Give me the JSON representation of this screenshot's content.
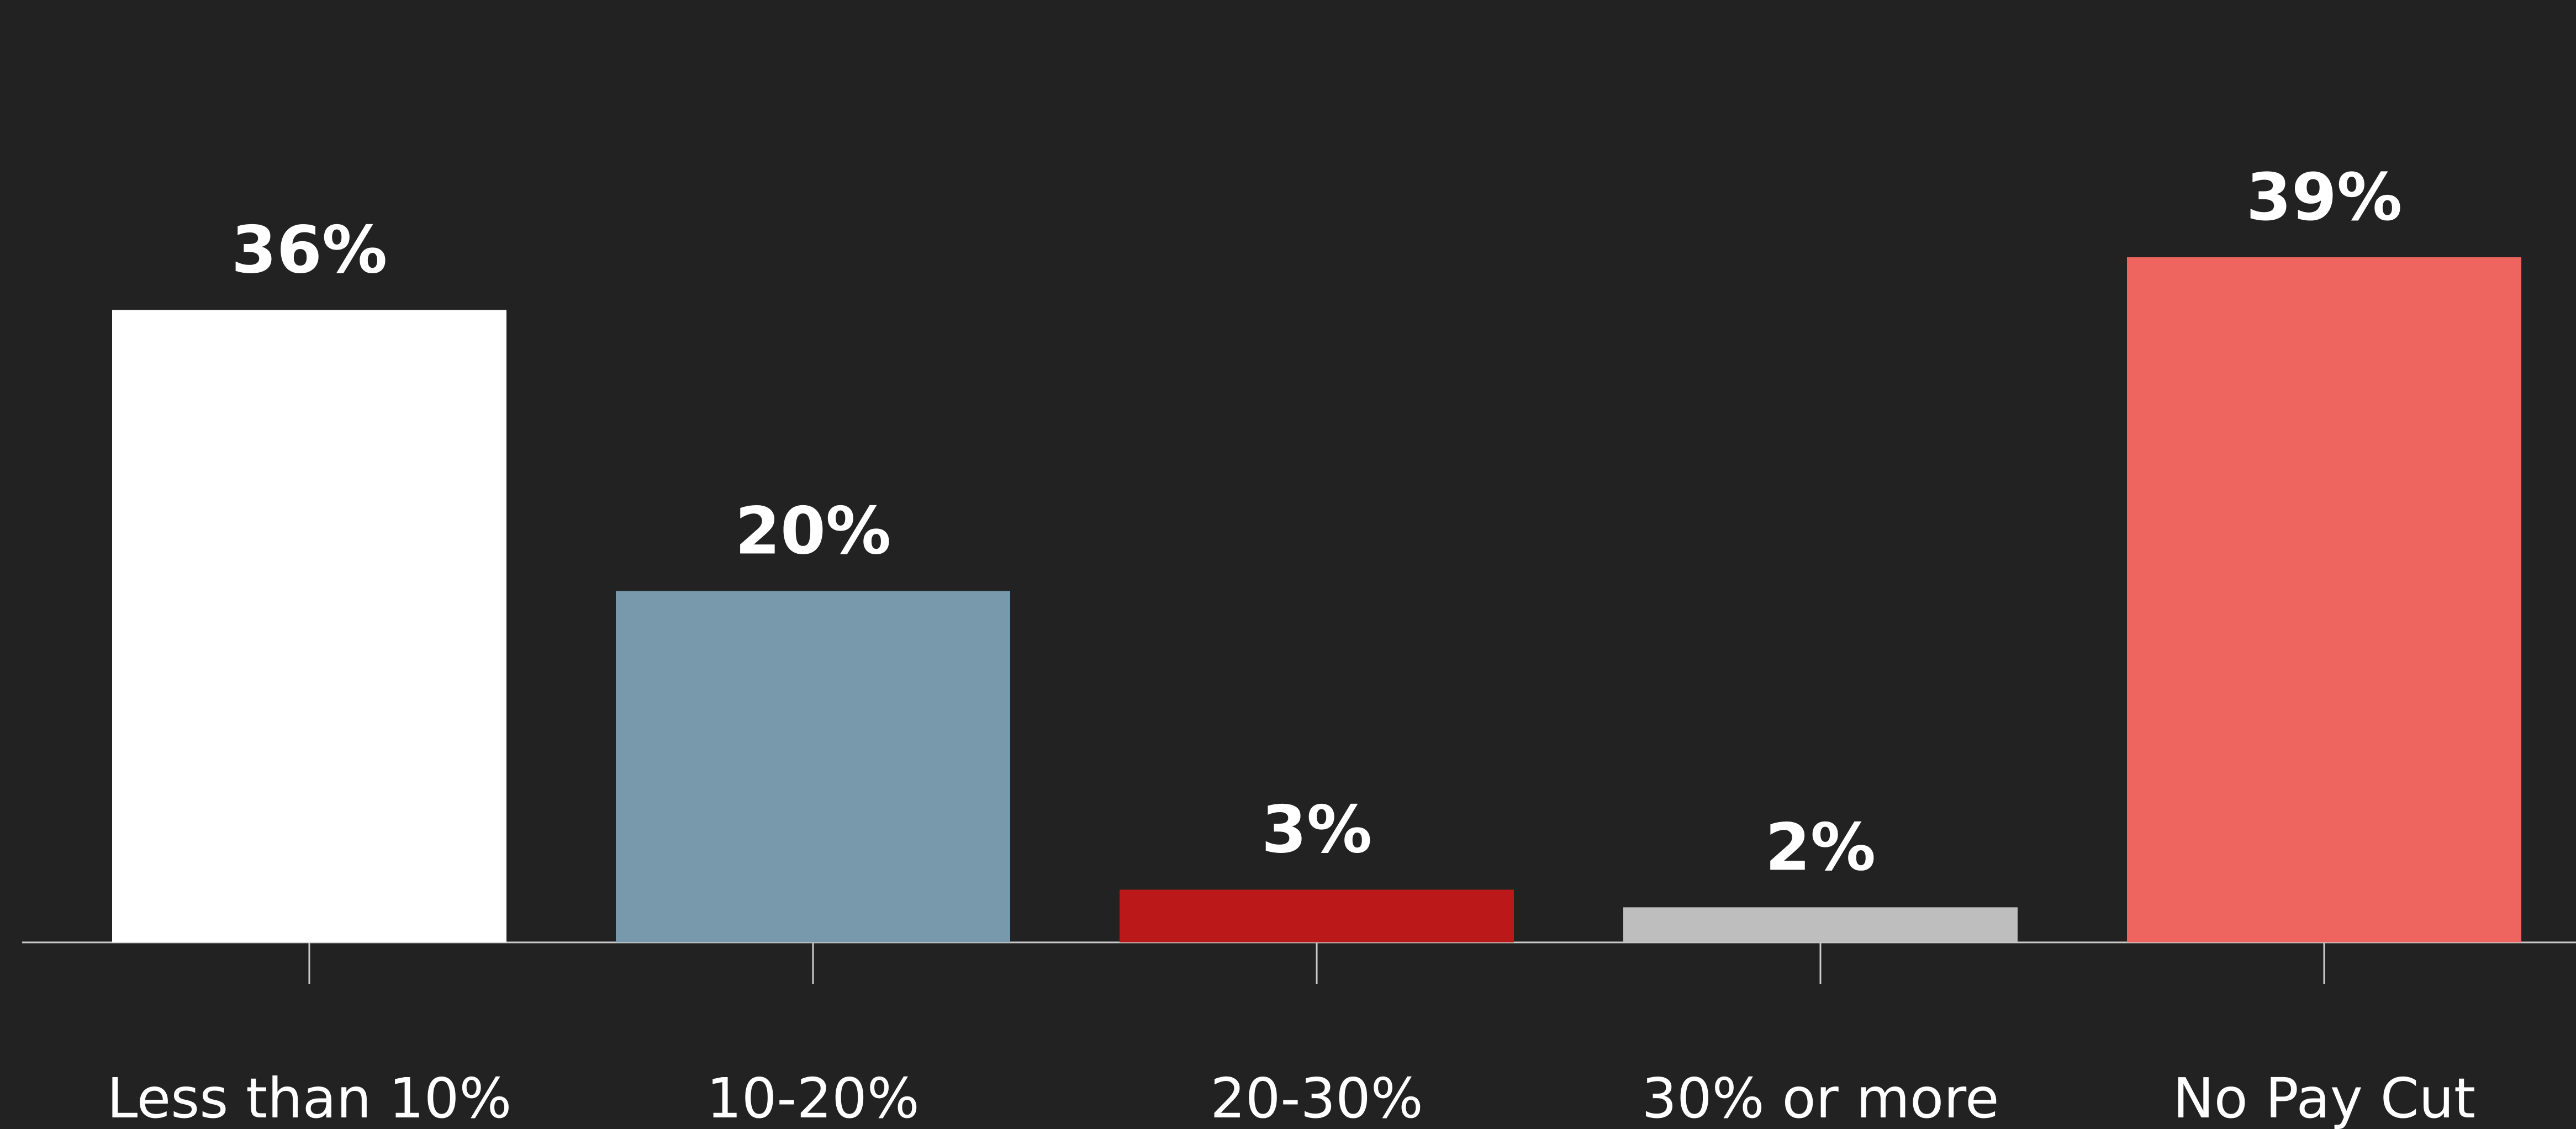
{
  "chart_data": {
    "type": "bar",
    "categories": [
      "Less than 10%",
      "10-20%",
      "20-30%",
      "30% or more",
      "No Pay Cut"
    ],
    "values": [
      36,
      20,
      3,
      2,
      39
    ],
    "value_labels": [
      "36%",
      "20%",
      "3%",
      "2%",
      "39%"
    ],
    "colors": [
      "#FFFFFF",
      "#7898AC",
      "#BB1919",
      "#BEBEBE",
      "#EE6560"
    ],
    "ylim": [
      0,
      40
    ],
    "grid": false,
    "title": "",
    "xlabel": "",
    "ylabel": "",
    "background": "#222222",
    "axis_color": "#CCCCCC",
    "label_color": "#FFFFFF"
  }
}
